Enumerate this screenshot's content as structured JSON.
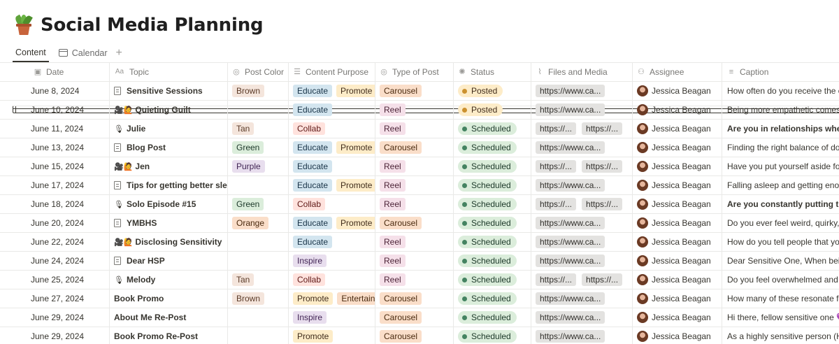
{
  "page": {
    "title": "Social Media Planning",
    "icon": "potted-plant-icon"
  },
  "tabs": [
    {
      "label": "Content",
      "icon": "table-icon",
      "active": true
    },
    {
      "label": "Calendar",
      "icon": "calendar-icon",
      "active": false
    }
  ],
  "add_view_label": "+",
  "columns": {
    "date": {
      "label": "Date",
      "icon": "calendar-icon"
    },
    "topic": {
      "label": "Topic",
      "icon": "text-icon",
      "icon_glyph": "Aa"
    },
    "color": {
      "label": "Post Color",
      "icon": "select-icon"
    },
    "purpose": {
      "label": "Content Purpose",
      "icon": "list-icon"
    },
    "type": {
      "label": "Type of Post",
      "icon": "select-icon"
    },
    "status": {
      "label": "Status",
      "icon": "status-icon"
    },
    "files": {
      "label": "Files and Media",
      "icon": "paperclip-icon"
    },
    "assignee": {
      "label": "Assignee",
      "icon": "people-icon"
    },
    "caption": {
      "label": "Caption",
      "icon": "lines-icon"
    }
  },
  "colors": {
    "posted": "#cb912f",
    "scheduled": "#448361",
    "grid": "#e9e9e7"
  },
  "rows": [
    {
      "date": "June 8, 2024",
      "topic": "Sensitive Sessions",
      "topic_icon": "page",
      "color": "Brown",
      "purpose": [
        "Educate",
        "Promote"
      ],
      "type": "Carousel",
      "status": "Posted",
      "files": [
        "https://www.ca..."
      ],
      "assignee": "Jessica Beagan",
      "caption": "How often do you receive the c",
      "caption_bold": false
    },
    {
      "date": "June 10, 2024",
      "topic": "Quieting Guilt",
      "topic_icon": "emoji",
      "topic_emoji": "🎥🙋",
      "color": "",
      "purpose": [
        "Educate"
      ],
      "type": "Reel",
      "status": "Posted",
      "files": [
        "https://www.ca..."
      ],
      "assignee": "Jessica Beagan",
      "caption": "Being more empathetic comes",
      "caption_bold": false
    },
    {
      "date": "June 11, 2024",
      "topic": "Julie",
      "topic_icon": "mic",
      "color": "Tan",
      "purpose": [
        "Collab"
      ],
      "type": "Reel",
      "status": "Scheduled",
      "files": [
        "https://...",
        "https://..."
      ],
      "assignee": "Jessica Beagan",
      "caption": "Are you in relationships where",
      "caption_bold": true
    },
    {
      "date": "June 13, 2024",
      "topic": "Blog Post",
      "topic_icon": "page",
      "color": "Green",
      "purpose": [
        "Educate",
        "Promote"
      ],
      "type": "Carousel",
      "status": "Scheduled",
      "files": [
        "https://www.ca..."
      ],
      "assignee": "Jessica Beagan",
      "caption": "Finding the right balance of do",
      "caption_bold": false
    },
    {
      "date": "June 15, 2024",
      "topic": "Jen",
      "topic_icon": "emoji",
      "topic_emoji": "🎥🙋",
      "color": "Purple",
      "purpose": [
        "Educate"
      ],
      "type": "Reel",
      "status": "Scheduled",
      "files": [
        "https://...",
        "https://..."
      ],
      "assignee": "Jessica Beagan",
      "caption": "Have you put yourself aside for",
      "caption_bold": false
    },
    {
      "date": "June 17, 2024",
      "topic": "Tips for getting better sleep",
      "topic_icon": "page",
      "color": "",
      "purpose": [
        "Educate",
        "Promote"
      ],
      "type": "Reel",
      "status": "Scheduled",
      "files": [
        "https://www.ca..."
      ],
      "assignee": "Jessica Beagan",
      "caption": "Falling asleep and getting enou",
      "caption_bold": false
    },
    {
      "date": "June 18, 2024",
      "topic": "Solo Episode #15",
      "topic_icon": "mic",
      "color": "Green",
      "purpose": [
        "Collab"
      ],
      "type": "Reel",
      "status": "Scheduled",
      "files": [
        "https://...",
        "https://..."
      ],
      "assignee": "Jessica Beagan",
      "caption": "Are you constantly putting the",
      "caption_bold": true
    },
    {
      "date": "June 20, 2024",
      "topic": "YMBHS",
      "topic_icon": "page",
      "color": "Orange",
      "purpose": [
        "Educate",
        "Promote"
      ],
      "type": "Carousel",
      "status": "Scheduled",
      "files": [
        "https://www.ca..."
      ],
      "assignee": "Jessica Beagan",
      "caption": "Do you ever feel weird, quirky,",
      "caption_bold": false
    },
    {
      "date": "June 22, 2024",
      "topic": "Disclosing Sensitivity",
      "topic_icon": "emoji",
      "topic_emoji": "🎥🙋",
      "color": "",
      "purpose": [
        "Educate"
      ],
      "type": "Reel",
      "status": "Scheduled",
      "files": [
        "https://www.ca..."
      ],
      "assignee": "Jessica Beagan",
      "caption": "How do you tell people that yo",
      "caption_bold": false
    },
    {
      "date": "June 24, 2024",
      "topic": "Dear HSP",
      "topic_icon": "page",
      "color": "",
      "purpose": [
        "Inspire"
      ],
      "type": "Reel",
      "status": "Scheduled",
      "files": [
        "https://www.ca..."
      ],
      "assignee": "Jessica Beagan",
      "caption": "Dear Sensitive One,  When bein",
      "caption_bold": false
    },
    {
      "date": "June 25, 2024",
      "topic": "Melody",
      "topic_icon": "mic",
      "color": "Tan",
      "purpose": [
        "Collab"
      ],
      "type": "Reel",
      "status": "Scheduled",
      "files": [
        "https://...",
        "https://..."
      ],
      "assignee": "Jessica Beagan",
      "caption": "Do you feel overwhelmed and",
      "caption_bold": false
    },
    {
      "date": "June 27, 2024",
      "topic": "Book Promo",
      "topic_icon": "none",
      "color": "Brown",
      "purpose": [
        "Promote",
        "Entertain"
      ],
      "type": "Carousel",
      "status": "Scheduled",
      "files": [
        "https://www.ca..."
      ],
      "assignee": "Jessica Beagan",
      "caption": "How many of these resonate fo",
      "caption_bold": false
    },
    {
      "date": "June 29, 2024",
      "topic": "About Me Re-Post",
      "topic_icon": "none",
      "color": "",
      "purpose": [
        "Inspire"
      ],
      "type": "Carousel",
      "status": "Scheduled",
      "files": [
        "https://www.ca..."
      ],
      "assignee": "Jessica Beagan",
      "caption": "Hi there, fellow sensitive one 💜",
      "caption_bold": false
    },
    {
      "date": "June 29, 2024",
      "topic": "Book Promo Re-Post",
      "topic_icon": "none",
      "color": "",
      "purpose": [
        "Promote"
      ],
      "type": "Carousel",
      "status": "Scheduled",
      "files": [
        "https://www.ca..."
      ],
      "assignee": "Jessica Beagan",
      "caption": "As a highly sensitive person (H",
      "caption_bold": false
    }
  ]
}
